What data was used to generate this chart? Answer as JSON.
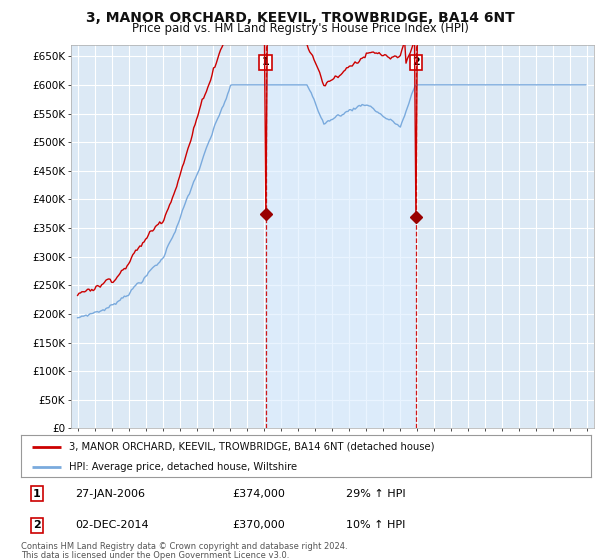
{
  "title": "3, MANOR ORCHARD, KEEVIL, TROWBRIDGE, BA14 6NT",
  "subtitle": "Price paid vs. HM Land Registry's House Price Index (HPI)",
  "ylim": [
    0,
    670000
  ],
  "yticks": [
    0,
    50000,
    100000,
    150000,
    200000,
    250000,
    300000,
    350000,
    400000,
    450000,
    500000,
    550000,
    600000,
    650000
  ],
  "sale1_date": 2006.08,
  "sale1_price": 374000,
  "sale1_label": "1",
  "sale1_date_str": "27-JAN-2006",
  "sale1_pct": "29% ↑ HPI",
  "sale2_date": 2014.92,
  "sale2_price": 370000,
  "sale2_label": "2",
  "sale2_date_str": "02-DEC-2014",
  "sale2_pct": "10% ↑ HPI",
  "legend_label1": "3, MANOR ORCHARD, KEEVIL, TROWBRIDGE, BA14 6NT (detached house)",
  "legend_label2": "HPI: Average price, detached house, Wiltshire",
  "footer1": "Contains HM Land Registry data © Crown copyright and database right 2024.",
  "footer2": "This data is licensed under the Open Government Licence v3.0.",
  "line1_color": "#cc0000",
  "line2_color": "#7aaadd",
  "shade_color": "#ddeeff",
  "bg_color": "#dce9f5",
  "grid_color": "#ffffff",
  "sale_marker_color": "#990000",
  "vline_color": "#cc0000",
  "box_border_color": "#cc0000",
  "xlim_left": 1994.6,
  "xlim_right": 2025.4
}
